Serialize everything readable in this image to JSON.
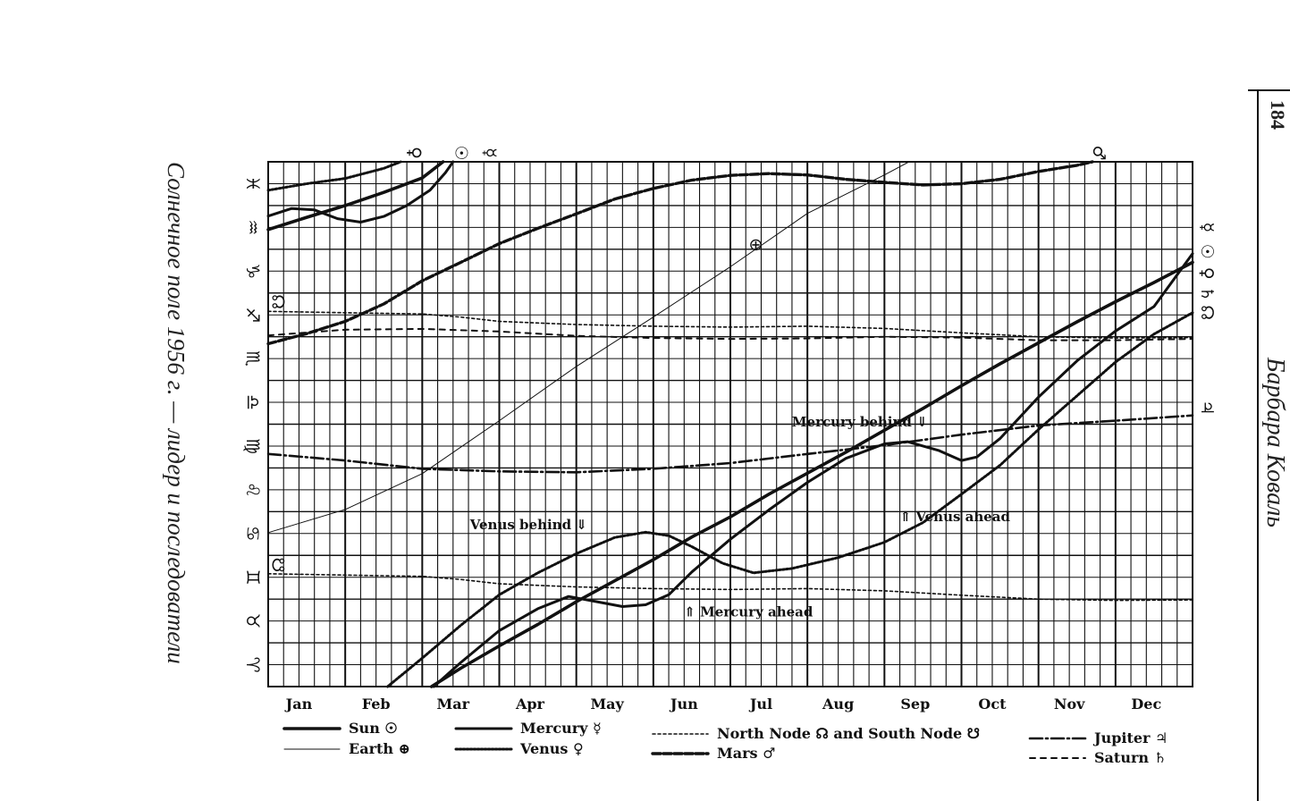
{
  "page": {
    "left_title": "Солнечное поле 1956 г. — лидер и последователи",
    "right_author": "Барбара Коваль",
    "page_number": "184"
  },
  "chart_data": {
    "type": "line",
    "title": "",
    "xlabel": "",
    "ylabel": "",
    "x_unit": "month of 1956",
    "xlim": [
      0,
      12
    ],
    "ylim": [
      0,
      12
    ],
    "x_tick_labels": [
      "Jan",
      "Feb",
      "Mar",
      "Apr",
      "May",
      "Jun",
      "Jul",
      "Aug",
      "Sep",
      "Oct",
      "Nov",
      "Dec"
    ],
    "y_tick_labels": [
      "♈",
      "♉",
      "♊",
      "♋",
      "♌",
      "♍",
      "♎",
      "♏",
      "♐",
      "♑",
      "♒",
      "♓"
    ],
    "grid": true,
    "series": [
      {
        "name": "Sun ☉",
        "style": "sun",
        "color": "#111111",
        "segments": [
          [
            [
              0,
              10.45
            ],
            [
              0.5,
              10.73
            ],
            [
              1.0,
              11.0
            ],
            [
              1.5,
              11.3
            ],
            [
              2.0,
              11.63
            ],
            [
              2.27,
              12.0
            ]
          ],
          [
            [
              2.12,
              0.0
            ],
            [
              2.5,
              0.42
            ],
            [
              3.0,
              0.93
            ],
            [
              3.5,
              1.42
            ],
            [
              4.0,
              1.94
            ],
            [
              4.5,
              2.42
            ],
            [
              5.0,
              2.9
            ],
            [
              5.5,
              3.42
            ],
            [
              6.0,
              3.88
            ],
            [
              6.5,
              4.4
            ],
            [
              7.0,
              4.88
            ],
            [
              7.5,
              5.36
            ],
            [
              8.0,
              5.86
            ],
            [
              8.5,
              6.36
            ],
            [
              9.0,
              6.88
            ],
            [
              9.5,
              7.38
            ],
            [
              10.0,
              7.86
            ],
            [
              10.5,
              8.34
            ],
            [
              11.0,
              8.8
            ],
            [
              11.5,
              9.24
            ],
            [
              12.0,
              9.7
            ]
          ]
        ]
      },
      {
        "name": "Mercury ☿",
        "style": "mercury",
        "color": "#111111",
        "segments": [
          [
            [
              0,
              10.76
            ],
            [
              0.3,
              10.93
            ],
            [
              0.6,
              10.9
            ],
            [
              0.9,
              10.7
            ],
            [
              1.2,
              10.62
            ],
            [
              1.5,
              10.75
            ],
            [
              1.8,
              11.0
            ],
            [
              2.1,
              11.35
            ],
            [
              2.3,
              11.75
            ],
            [
              2.4,
              12.0
            ]
          ],
          [
            [
              2.15,
              0.0
            ],
            [
              2.5,
              0.55
            ],
            [
              3.0,
              1.28
            ],
            [
              3.5,
              1.78
            ],
            [
              3.9,
              2.06
            ],
            [
              4.3,
              1.93
            ],
            [
              4.6,
              1.83
            ],
            [
              4.9,
              1.87
            ],
            [
              5.2,
              2.1
            ],
            [
              5.5,
              2.62
            ],
            [
              6.0,
              3.37
            ],
            [
              6.5,
              4.04
            ],
            [
              7.0,
              4.67
            ],
            [
              7.5,
              5.22
            ],
            [
              8.0,
              5.55
            ],
            [
              8.3,
              5.6
            ],
            [
              8.7,
              5.4
            ],
            [
              9.0,
              5.17
            ],
            [
              9.2,
              5.25
            ],
            [
              9.5,
              5.67
            ],
            [
              10.0,
              6.62
            ],
            [
              10.5,
              7.45
            ],
            [
              11.0,
              8.13
            ],
            [
              11.5,
              8.69
            ],
            [
              12.0,
              9.9
            ]
          ]
        ]
      },
      {
        "name": "Earth ⊕",
        "style": "earth",
        "color": "#111111",
        "segments": [
          [
            [
              0,
              3.52
            ],
            [
              1.0,
              4.05
            ],
            [
              2.0,
              4.87
            ],
            [
              3.0,
              6.08
            ],
            [
              4.0,
              7.32
            ],
            [
              5.0,
              8.45
            ],
            [
              6.0,
              9.6
            ],
            [
              7.0,
              10.82
            ],
            [
              8.0,
              11.7
            ],
            [
              8.32,
              12.0
            ]
          ]
        ]
      },
      {
        "name": "Venus ♀",
        "style": "venus",
        "color": "#111111",
        "segments": [
          [
            [
              0,
              11.35
            ],
            [
              0.5,
              11.5
            ],
            [
              1.0,
              11.62
            ],
            [
              1.5,
              11.85
            ],
            [
              1.72,
              12.0
            ]
          ],
          [
            [
              1.55,
              0.0
            ],
            [
              2.0,
              0.65
            ],
            [
              2.5,
              1.4
            ],
            [
              3.0,
              2.1
            ],
            [
              3.5,
              2.6
            ],
            [
              4.0,
              3.04
            ],
            [
              4.5,
              3.41
            ],
            [
              4.9,
              3.53
            ],
            [
              5.2,
              3.45
            ],
            [
              5.5,
              3.2
            ],
            [
              5.9,
              2.82
            ],
            [
              6.3,
              2.6
            ],
            [
              6.8,
              2.7
            ],
            [
              7.4,
              2.95
            ],
            [
              8.0,
              3.3
            ],
            [
              8.5,
              3.75
            ],
            [
              9.0,
              4.4
            ],
            [
              9.5,
              5.06
            ],
            [
              10.0,
              5.88
            ],
            [
              10.5,
              6.65
            ],
            [
              11.0,
              7.42
            ],
            [
              11.5,
              8.06
            ],
            [
              12.0,
              8.55
            ]
          ]
        ]
      },
      {
        "name": "North Node ☊",
        "style": "node",
        "color": "#111111",
        "segments": [
          [
            [
              0,
              8.58
            ],
            [
              1.0,
              8.55
            ],
            [
              2.0,
              8.52
            ],
            [
              2.5,
              8.45
            ],
            [
              3.0,
              8.35
            ],
            [
              4.0,
              8.28
            ],
            [
              5.0,
              8.24
            ],
            [
              6.0,
              8.22
            ],
            [
              7.0,
              8.24
            ],
            [
              8.0,
              8.19
            ],
            [
              9.0,
              8.09
            ],
            [
              10.0,
              8.0
            ],
            [
              11.0,
              7.97
            ],
            [
              12.0,
              7.98
            ]
          ]
        ]
      },
      {
        "name": "South Node ☋",
        "style": "node",
        "color": "#111111",
        "segments": [
          [
            [
              0,
              2.58
            ],
            [
              1.0,
              2.55
            ],
            [
              2.0,
              2.52
            ],
            [
              2.5,
              2.45
            ],
            [
              3.0,
              2.35
            ],
            [
              4.0,
              2.28
            ],
            [
              5.0,
              2.24
            ],
            [
              6.0,
              2.22
            ],
            [
              7.0,
              2.24
            ],
            [
              8.0,
              2.19
            ],
            [
              9.0,
              2.09
            ],
            [
              10.0,
              2.0
            ],
            [
              11.0,
              1.97
            ],
            [
              12.0,
              1.98
            ]
          ]
        ]
      },
      {
        "name": "Mars ♂",
        "style": "mars",
        "color": "#111111",
        "segments": [
          [
            [
              0,
              7.84
            ],
            [
              0.5,
              8.07
            ],
            [
              1.0,
              8.35
            ],
            [
              1.5,
              8.75
            ],
            [
              2.0,
              9.28
            ],
            [
              2.5,
              9.7
            ],
            [
              3.0,
              10.13
            ],
            [
              3.5,
              10.48
            ],
            [
              4.0,
              10.81
            ],
            [
              4.5,
              11.15
            ],
            [
              5.0,
              11.39
            ],
            [
              5.5,
              11.58
            ],
            [
              6.0,
              11.69
            ],
            [
              6.5,
              11.73
            ],
            [
              7.0,
              11.7
            ],
            [
              7.5,
              11.6
            ],
            [
              8.0,
              11.53
            ],
            [
              8.5,
              11.47
            ],
            [
              9.0,
              11.5
            ],
            [
              9.5,
              11.6
            ],
            [
              10.0,
              11.78
            ],
            [
              10.5,
              11.92
            ],
            [
              10.7,
              12.0
            ]
          ]
        ]
      },
      {
        "name": "Jupiter ♃",
        "style": "jupiter",
        "color": "#111111",
        "segments": [
          [
            [
              0,
              5.32
            ],
            [
              1.0,
              5.17
            ],
            [
              2.0,
              4.98
            ],
            [
              3.0,
              4.92
            ],
            [
              4.0,
              4.9
            ],
            [
              5.0,
              4.98
            ],
            [
              6.0,
              5.11
            ],
            [
              7.0,
              5.32
            ],
            [
              8.0,
              5.52
            ],
            [
              9.0,
              5.76
            ],
            [
              10.0,
              5.97
            ],
            [
              11.0,
              6.08
            ],
            [
              12.0,
              6.2
            ]
          ]
        ]
      },
      {
        "name": "Saturn ♄",
        "style": "saturn",
        "color": "#111111",
        "segments": [
          [
            [
              0,
              8.03
            ],
            [
              1.0,
              8.16
            ],
            [
              2.0,
              8.18
            ],
            [
              3.0,
              8.12
            ],
            [
              4.0,
              8.02
            ],
            [
              5.0,
              7.97
            ],
            [
              6.0,
              7.95
            ],
            [
              7.0,
              7.96
            ],
            [
              8.0,
              8.0
            ],
            [
              9.0,
              7.98
            ],
            [
              10.0,
              7.92
            ],
            [
              11.0,
              7.92
            ],
            [
              12.0,
              7.95
            ]
          ]
        ]
      }
    ],
    "annotations": [
      {
        "text": "Mercury behind ⇓",
        "x": 6.8,
        "y": 5.95
      },
      {
        "text": "Venus behind ⇓",
        "x": 2.62,
        "y": 3.6
      },
      {
        "text": "⇑ Venus ahead",
        "x": 8.2,
        "y": 3.78
      },
      {
        "text": "⇑ Mercury ahead",
        "x": 5.4,
        "y": 1.6
      }
    ],
    "point_labels": [
      {
        "text": "♀",
        "x": 1.9,
        "y": 12.0,
        "side": "top"
      },
      {
        "text": "☉",
        "x": 2.5,
        "y": 12.0,
        "side": "top"
      },
      {
        "text": "☿",
        "x": 2.87,
        "y": 12.0,
        "side": "top"
      },
      {
        "text": "♂",
        "x": 10.78,
        "y": 12.0,
        "side": "top"
      },
      {
        "text": "⊕",
        "x": 6.33,
        "y": 10.1,
        "side": "inside"
      },
      {
        "text": "☊",
        "x": 0.12,
        "y": 8.8,
        "side": "inside"
      },
      {
        "text": "☋",
        "x": 0.12,
        "y": 2.78,
        "side": "inside"
      },
      {
        "text": "☿",
        "x": 12.0,
        "y": 10.5,
        "side": "right"
      },
      {
        "text": "☉",
        "x": 12.0,
        "y": 9.95,
        "side": "right"
      },
      {
        "text": "♀",
        "x": 12.0,
        "y": 9.45,
        "side": "right"
      },
      {
        "text": "♄",
        "x": 12.0,
        "y": 8.98,
        "side": "right"
      },
      {
        "text": "☊",
        "x": 12.0,
        "y": 8.55,
        "side": "right"
      },
      {
        "text": "♃",
        "x": 12.0,
        "y": 6.38,
        "side": "right"
      }
    ],
    "legend": {
      "placement": "bottom",
      "entries": [
        {
          "label": "Sun ☉",
          "style": "sun"
        },
        {
          "label": "Earth ⊕",
          "style": "earth"
        },
        {
          "label": "Mercury ☿",
          "style": "mercury"
        },
        {
          "label": "Venus ♀",
          "style": "venus"
        },
        {
          "label": "North Node ☊ and South Node ☋",
          "style": "node"
        },
        {
          "label": "Mars ♂",
          "style": "mars"
        },
        {
          "label": "Jupiter ♃",
          "style": "jupiter"
        },
        {
          "label": "Saturn ♄",
          "style": "saturn"
        }
      ]
    }
  }
}
